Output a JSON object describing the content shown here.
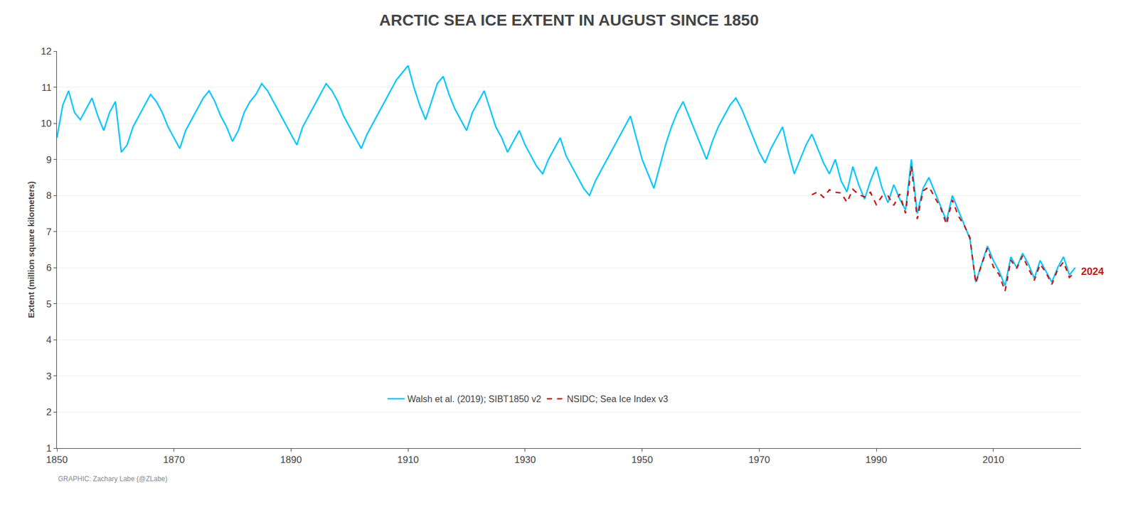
{
  "chart_data": {
    "type": "line",
    "title": "ARCTIC SEA ICE EXTENT IN AUGUST SINCE 1850",
    "ylabel": "Extent (million square kilometers)",
    "caption": "GRAPHIC: Zachary Labe (@ZLabe)",
    "annotations": [
      {
        "text": "2024",
        "x": 2024,
        "y": 5.89,
        "color": "#cc1111"
      }
    ],
    "xlim": [
      1850,
      2025
    ],
    "xticks": [
      1850,
      1870,
      1890,
      1910,
      1930,
      1950,
      1970,
      1990,
      2010
    ],
    "ylim": [
      1,
      12
    ],
    "yticks": [
      1,
      2,
      3,
      4,
      5,
      6,
      7,
      8,
      9,
      10,
      11,
      12
    ],
    "grid": "y",
    "legend": "lower center",
    "series": [
      {
        "name": "Walsh et al. (2019); SIBT1850 v2",
        "color": "#00c5ff",
        "line_style": "solid",
        "x": [
          1850,
          1851,
          1852,
          1853,
          1854,
          1855,
          1856,
          1857,
          1858,
          1859,
          1860,
          1861,
          1862,
          1863,
          1864,
          1865,
          1866,
          1867,
          1868,
          1869,
          1870,
          1871,
          1872,
          1873,
          1874,
          1875,
          1876,
          1877,
          1878,
          1879,
          1880,
          1881,
          1882,
          1883,
          1884,
          1885,
          1886,
          1887,
          1888,
          1889,
          1890,
          1891,
          1892,
          1893,
          1894,
          1895,
          1896,
          1897,
          1898,
          1899,
          1900,
          1901,
          1902,
          1903,
          1904,
          1905,
          1906,
          1907,
          1908,
          1909,
          1910,
          1911,
          1912,
          1913,
          1914,
          1915,
          1916,
          1917,
          1918,
          1919,
          1920,
          1921,
          1922,
          1923,
          1924,
          1925,
          1926,
          1927,
          1928,
          1929,
          1930,
          1931,
          1932,
          1933,
          1934,
          1935,
          1936,
          1937,
          1938,
          1939,
          1940,
          1941,
          1942,
          1943,
          1944,
          1945,
          1946,
          1947,
          1948,
          1949,
          1950,
          1951,
          1952,
          1953,
          1954,
          1955,
          1956,
          1957,
          1958,
          1959,
          1960,
          1961,
          1962,
          1963,
          1964,
          1965,
          1966,
          1967,
          1968,
          1969,
          1970,
          1971,
          1972,
          1973,
          1974,
          1975,
          1976,
          1977,
          1978,
          1979,
          1980,
          1981,
          1982,
          1983,
          1984,
          1985,
          1986,
          1987,
          1988,
          1989,
          1990,
          1991,
          1992,
          1993,
          1994,
          1995,
          1996,
          1997,
          1998,
          1999,
          2000,
          2001,
          2002,
          2003,
          2004,
          2005,
          2006,
          2007,
          2008,
          2009,
          2010,
          2011,
          2012,
          2013,
          2014,
          2015,
          2016,
          2017,
          2018,
          2019,
          2020,
          2021,
          2022,
          2023,
          2024
        ],
        "values": [
          9.6,
          10.5,
          10.9,
          10.3,
          10.1,
          10.4,
          10.7,
          10.2,
          9.8,
          10.3,
          10.6,
          9.2,
          9.4,
          9.9,
          10.2,
          10.5,
          10.8,
          10.6,
          10.3,
          9.9,
          9.6,
          9.3,
          9.8,
          10.1,
          10.4,
          10.7,
          10.9,
          10.6,
          10.2,
          9.9,
          9.5,
          9.8,
          10.3,
          10.6,
          10.8,
          11.1,
          10.9,
          10.6,
          10.3,
          10.0,
          9.7,
          9.4,
          9.9,
          10.2,
          10.5,
          10.8,
          11.1,
          10.9,
          10.6,
          10.2,
          9.9,
          9.6,
          9.3,
          9.7,
          10.0,
          10.3,
          10.6,
          10.9,
          11.2,
          11.4,
          11.6,
          11.0,
          10.5,
          10.1,
          10.6,
          11.1,
          11.3,
          10.8,
          10.4,
          10.1,
          9.8,
          10.3,
          10.6,
          10.9,
          10.4,
          9.9,
          9.6,
          9.2,
          9.5,
          9.8,
          9.4,
          9.1,
          8.8,
          8.6,
          9.0,
          9.3,
          9.6,
          9.1,
          8.8,
          8.5,
          8.2,
          8.0,
          8.4,
          8.7,
          9.0,
          9.3,
          9.6,
          9.9,
          10.2,
          9.6,
          9.0,
          8.6,
          8.2,
          8.8,
          9.4,
          9.9,
          10.3,
          10.6,
          10.2,
          9.8,
          9.4,
          9.0,
          9.5,
          9.9,
          10.2,
          10.5,
          10.7,
          10.4,
          10.0,
          9.6,
          9.2,
          8.9,
          9.3,
          9.6,
          9.9,
          9.2,
          8.6,
          9.0,
          9.4,
          9.7,
          9.3,
          8.9,
          8.6,
          9.0,
          8.4,
          8.1,
          8.8,
          8.3,
          7.9,
          8.4,
          8.8,
          8.2,
          7.8,
          8.3,
          7.9,
          7.6,
          9.0,
          7.5,
          8.2,
          8.5,
          8.1,
          7.7,
          7.3,
          8.0,
          7.6,
          7.2,
          6.8,
          5.6,
          6.1,
          6.6,
          6.2,
          5.9,
          5.5,
          6.3,
          6.0,
          6.4,
          6.1,
          5.7,
          6.2,
          5.9,
          5.6,
          6.0,
          6.3,
          5.8,
          6.0
        ]
      },
      {
        "name": "NSIDC; Sea Ice Index v3",
        "color": "#cc1111",
        "line_style": "dashed",
        "x": [
          1979,
          1980,
          1981,
          1982,
          1983,
          1984,
          1985,
          1986,
          1987,
          1988,
          1989,
          1990,
          1991,
          1992,
          1993,
          1994,
          1995,
          1996,
          1997,
          1998,
          1999,
          2000,
          2001,
          2002,
          2003,
          2004,
          2005,
          2006,
          2007,
          2008,
          2009,
          2010,
          2011,
          2012,
          2013,
          2014,
          2015,
          2016,
          2017,
          2018,
          2019,
          2020,
          2021,
          2022,
          2023,
          2024
        ],
        "values": [
          8.02,
          8.1,
          7.95,
          8.16,
          8.09,
          8.07,
          7.81,
          8.17,
          8.03,
          7.96,
          8.09,
          7.75,
          7.98,
          7.99,
          7.73,
          8.04,
          7.51,
          8.82,
          7.35,
          8.13,
          8.24,
          7.95,
          7.66,
          7.2,
          7.88,
          7.44,
          7.18,
          6.84,
          5.57,
          6.09,
          6.54,
          6.03,
          5.81,
          5.35,
          6.21,
          5.98,
          6.33,
          5.98,
          5.65,
          6.1,
          5.86,
          5.54,
          5.95,
          6.16,
          5.73,
          5.89
        ]
      }
    ]
  }
}
